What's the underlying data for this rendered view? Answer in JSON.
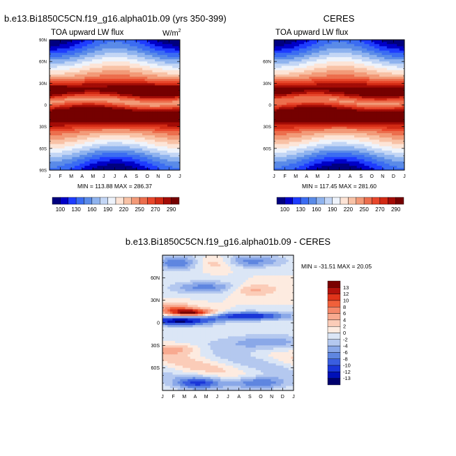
{
  "panels": [
    {
      "id": "model",
      "title": "b.e13.Bi1850C5CN.f19_g16.alpha01b.09 (yrs 350-399)",
      "subtitle": "TOA upward LW flux",
      "units": "W/m",
      "units_sup": "2",
      "stats": "MIN = 113.88 MAX = 286.37"
    },
    {
      "id": "obs",
      "title": "CERES",
      "subtitle": "TOA upward LW flux",
      "units": "",
      "units_sup": "",
      "stats": "MIN = 117.45 MAX = 281.60"
    },
    {
      "id": "diff",
      "title": "b.e13.Bi1850C5CN.f19_g16.alpha01b.09 - CERES",
      "subtitle": "",
      "units": "",
      "units_sup": "",
      "stats": "MIN = -31.51 MAX =  20.05"
    }
  ],
  "chart_data": [
    {
      "type": "heatmap",
      "panel": "model",
      "x_ticks": [
        "J",
        "F",
        "M",
        "A",
        "M",
        "J",
        "J",
        "A",
        "S",
        "O",
        "N",
        "D",
        "J"
      ],
      "y_ticks_full": [
        "90N",
        "60N",
        "30N",
        "0",
        "30S",
        "60S",
        "90S"
      ],
      "y_ticks_vals": [
        90,
        60,
        30,
        0,
        -30,
        -60,
        -90
      ],
      "ylim": [
        -90,
        90
      ],
      "min": 113.88,
      "max": 286.37,
      "colorbar_labels": [
        "100",
        "130",
        "160",
        "190",
        "220",
        "250",
        "270",
        "290"
      ],
      "colorbar_levels": [
        100,
        115,
        130,
        145,
        160,
        175,
        190,
        205,
        220,
        235,
        250,
        260,
        270,
        280,
        290
      ],
      "colors": [
        "#00007f",
        "#0000c8",
        "#1e3cff",
        "#3b6cf2",
        "#5a8be8",
        "#8fb3ee",
        "#c3d6f5",
        "#eef3fb",
        "#fde4d6",
        "#f8c2a6",
        "#f29a78",
        "#ec6e4d",
        "#e8472b",
        "#d22a14",
        "#a30c06",
        "#750000"
      ]
    },
    {
      "type": "heatmap",
      "panel": "obs",
      "x_ticks": [
        "J",
        "F",
        "M",
        "A",
        "M",
        "J",
        "J",
        "A",
        "S",
        "O",
        "N",
        "D",
        "J"
      ],
      "y_ticks_vals": [
        60,
        30,
        0,
        -30,
        -60
      ],
      "y_ticks": [
        "60N",
        "30N",
        "0",
        "30S",
        "60S"
      ],
      "ylim": [
        -90,
        90
      ],
      "min": 117.45,
      "max": 281.6,
      "colorbar_labels": [
        "100",
        "130",
        "160",
        "190",
        "220",
        "250",
        "270",
        "290"
      ]
    },
    {
      "type": "heatmap",
      "panel": "diff",
      "x_ticks": [
        "J",
        "F",
        "M",
        "A",
        "M",
        "J",
        "J",
        "A",
        "S",
        "O",
        "N",
        "D",
        "J"
      ],
      "y_ticks_vals": [
        60,
        30,
        0,
        -30,
        -60
      ],
      "y_ticks": [
        "60N",
        "30N",
        "0",
        "30S",
        "60S"
      ],
      "ylim": [
        -90,
        90
      ],
      "min": -31.51,
      "max": 20.05,
      "colorbar_labels": [
        "13",
        "12",
        "10",
        "8",
        "6",
        "4",
        "2",
        "0",
        "-2",
        "-4",
        "-6",
        "-8",
        "-10",
        "-12",
        "-13"
      ],
      "colors": [
        "#7a0000",
        "#b3120c",
        "#e0341a",
        "#f0603a",
        "#f4886a",
        "#f8aa90",
        "#fbccb8",
        "#fdebe0",
        "#dbe6f6",
        "#b4c8ef",
        "#8aa8e8",
        "#5f86e0",
        "#3a5ee0",
        "#1a36d8",
        "#0010b8",
        "#00006e"
      ]
    }
  ]
}
